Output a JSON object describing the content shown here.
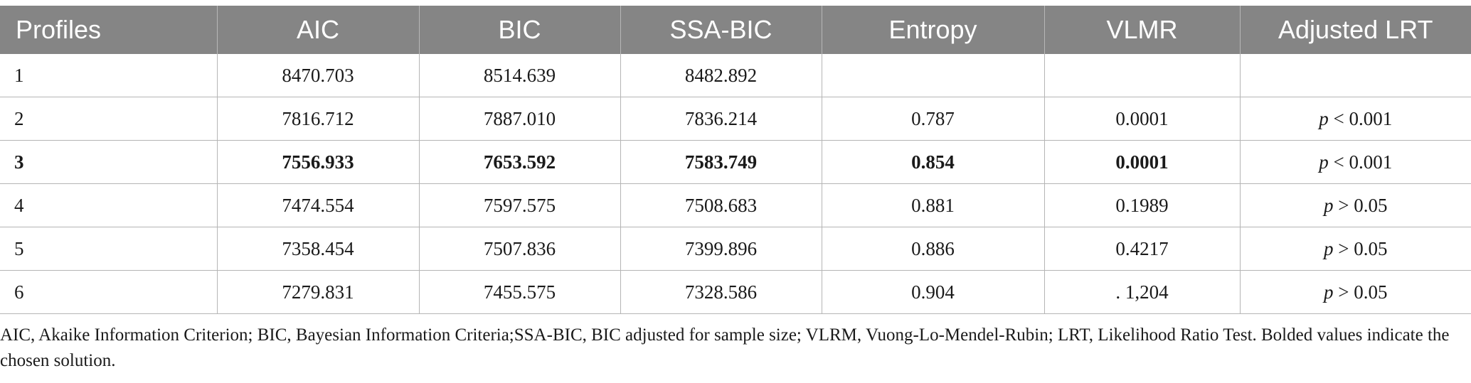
{
  "table": {
    "headers": [
      "Profiles",
      "AIC",
      "BIC",
      "SSA-BIC",
      "Entropy",
      "VLMR",
      "Adjusted LRT"
    ],
    "rows": [
      {
        "profile": "1",
        "aic": "8470.703",
        "bic": "8514.639",
        "ssa_bic": "8482.892",
        "entropy": "",
        "vlmr": "",
        "lrt_p": "",
        "lrt_rest": "",
        "bold": false
      },
      {
        "profile": "2",
        "aic": "7816.712",
        "bic": "7887.010",
        "ssa_bic": "7836.214",
        "entropy": "0.787",
        "vlmr": "0.0001",
        "lrt_p": "p",
        "lrt_rest": " < 0.001",
        "bold": false
      },
      {
        "profile": "3",
        "aic": "7556.933",
        "bic": "7653.592",
        "ssa_bic": "7583.749",
        "entropy": "0.854",
        "vlmr": "0.0001",
        "lrt_p": "p",
        "lrt_rest": " < 0.001",
        "bold": true
      },
      {
        "profile": "4",
        "aic": "7474.554",
        "bic": "7597.575",
        "ssa_bic": "7508.683",
        "entropy": "0.881",
        "vlmr": "0.1989",
        "lrt_p": "p",
        "lrt_rest": " > 0.05",
        "bold": false
      },
      {
        "profile": "5",
        "aic": "7358.454",
        "bic": "7507.836",
        "ssa_bic": "7399.896",
        "entropy": "0.886",
        "vlmr": "0.4217",
        "lrt_p": "p",
        "lrt_rest": " > 0.05",
        "bold": false
      },
      {
        "profile": "6",
        "aic": "7279.831",
        "bic": "7455.575",
        "ssa_bic": "7328.586",
        "entropy": "0.904",
        "vlmr": ". 1,204",
        "lrt_p": "p",
        "lrt_rest": " > 0.05",
        "bold": false
      }
    ]
  },
  "footnote": "AIC, Akaike Information Criterion; BIC, Bayesian Information Criteria;SSA-BIC, BIC adjusted for sample size; VLRM, Vuong-Lo-Mendel-Rubin; LRT, Likelihood Ratio Test. Bolded values indicate the chosen solution."
}
